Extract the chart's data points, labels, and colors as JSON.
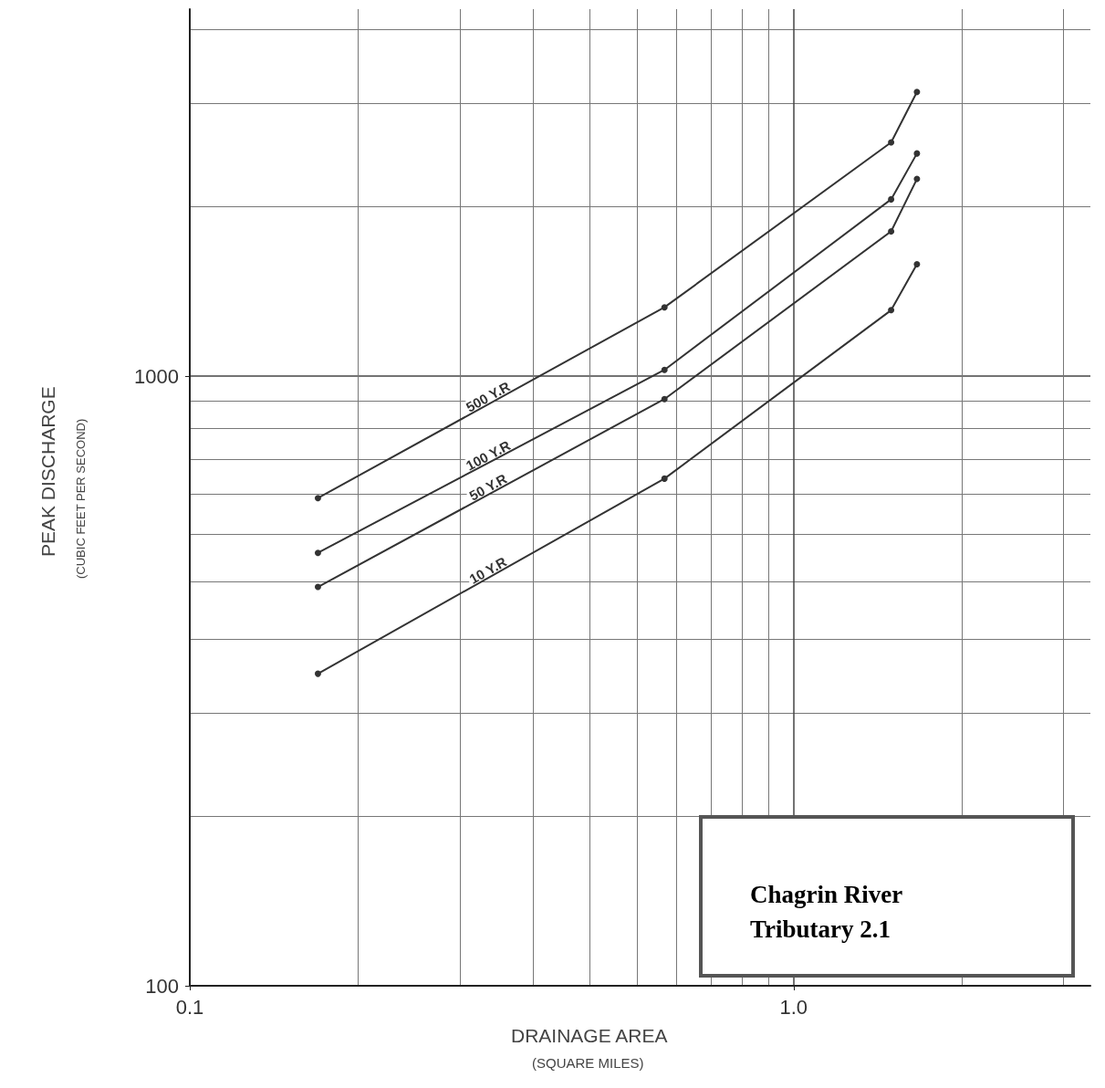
{
  "chart_data": {
    "type": "line",
    "xlabel": "DRAINAGE AREA\n(SQUARE MILES)",
    "ylabel": "PEAK DISCHARGE\n(CUBIC FEET PER SECOND)",
    "x": [
      0.163,
      0.611,
      1.45,
      1.6
    ],
    "series": [
      {
        "name": "500 Y.R",
        "color": "#333333",
        "values": [
          631,
          1297,
          2418,
          2926
        ]
      },
      {
        "name": "100 Y.R",
        "color": "#333333",
        "values": [
          513,
          1024,
          1950,
          2319
        ]
      },
      {
        "name": "50 Y.R",
        "color": "#333333",
        "values": [
          451,
          917,
          1728,
          2106
        ]
      },
      {
        "name": "10 Y.R",
        "color": "#333333",
        "values": [
          325,
          679,
          1283,
          1526
        ]
      }
    ],
    "log": "xy",
    "xlim": [
      0.1,
      3.1
    ],
    "ylim": [
      100,
      4000
    ],
    "xticks": [
      0.1,
      {
        "value": 1,
        "label": "1.0"
      }
    ],
    "yticks": [
      100,
      1000
    ],
    "grid": true,
    "legend": false,
    "marker": "circle",
    "line_style": "solid",
    "annotations": [
      "Chagrin River\nTributary 2.1"
    ]
  }
}
